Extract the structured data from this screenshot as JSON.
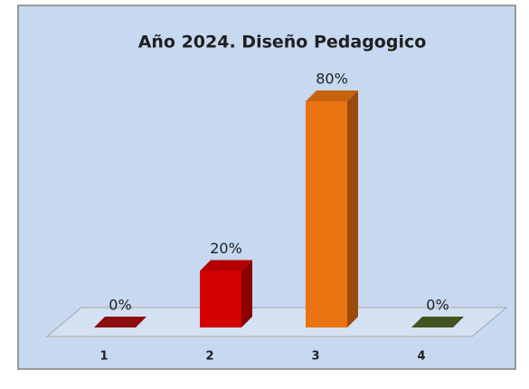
{
  "chart_data": {
    "type": "bar",
    "title": "Año 2024. Diseño Pedagogico",
    "categories": [
      "1",
      "2",
      "3",
      "4"
    ],
    "values": [
      0,
      20,
      80,
      0
    ],
    "value_labels": [
      "0%",
      "20%",
      "80%",
      "0%"
    ],
    "colors": [
      "#a50f15",
      "#d40000",
      "#ea7412",
      "#4f6228"
    ]
  }
}
